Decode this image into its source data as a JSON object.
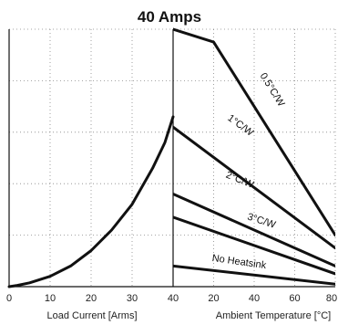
{
  "chart_data": [
    {
      "type": "line",
      "title": "40 Amps",
      "xlabel": "Load Current [Arms]",
      "ylabel": "",
      "x_ticks": [
        "0",
        "10",
        "20",
        "30",
        "40"
      ],
      "xlim": [
        0,
        40
      ],
      "grid": true,
      "series": [
        {
          "name": "",
          "x": [
            0,
            2,
            5,
            10,
            15,
            20,
            25,
            30,
            35,
            38,
            40
          ],
          "y": [
            0,
            0.5,
            1.5,
            4,
            8,
            14,
            22,
            32,
            46,
            56,
            66
          ]
        }
      ]
    },
    {
      "type": "line",
      "title": "",
      "xlabel": "Ambient Temperature [°C]",
      "ylabel": "",
      "x_ticks": [
        "20",
        "40",
        "60",
        "80"
      ],
      "xlim": [
        0,
        80
      ],
      "grid": true,
      "series": [
        {
          "name": "0.5°C/W",
          "x": [
            0,
            20,
            40,
            60,
            80
          ],
          "y": [
            100,
            95,
            70,
            45,
            20
          ]
        },
        {
          "name": "1°C/W",
          "x": [
            0,
            80
          ],
          "y": [
            62,
            15
          ]
        },
        {
          "name": "2°C/W",
          "x": [
            0,
            80
          ],
          "y": [
            36,
            8
          ]
        },
        {
          "name": "3°C/W",
          "x": [
            0,
            80
          ],
          "y": [
            27,
            5
          ]
        },
        {
          "name": "No Heatsink",
          "x": [
            0,
            80
          ],
          "y": [
            8,
            1
          ]
        }
      ]
    }
  ]
}
